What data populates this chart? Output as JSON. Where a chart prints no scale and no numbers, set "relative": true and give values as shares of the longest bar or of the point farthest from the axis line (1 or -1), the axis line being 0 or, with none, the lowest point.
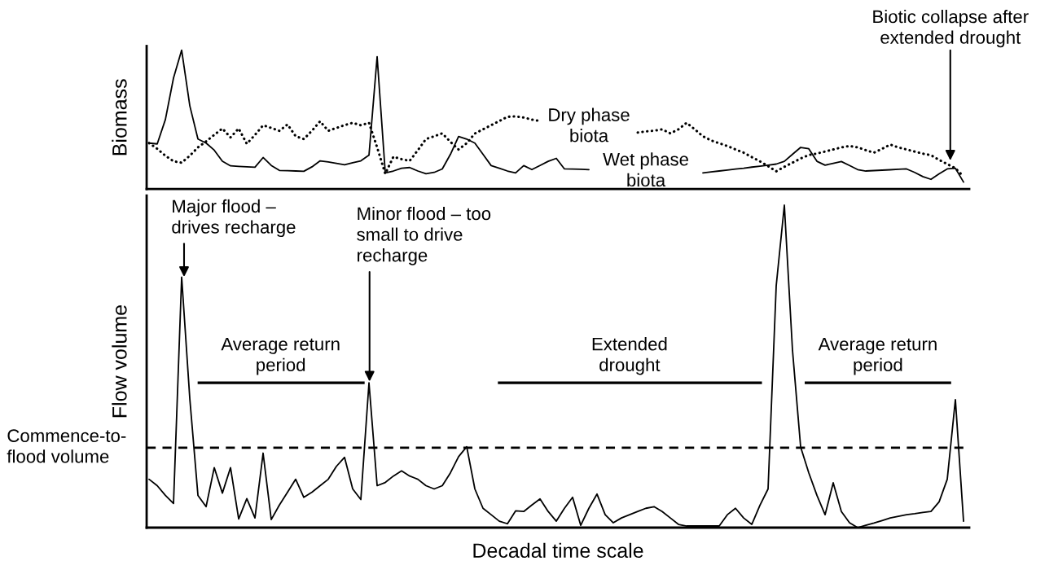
{
  "chart_data": [
    {
      "type": "line",
      "ylabel": "Biomass",
      "relative": true,
      "line_style": "solid",
      "marker": "none",
      "categories": [
        null,
        null,
        null,
        null,
        null,
        null,
        null,
        null,
        null,
        null,
        null,
        null,
        null,
        null,
        null,
        null,
        null,
        null,
        null,
        null,
        null,
        null,
        null,
        null,
        null,
        null,
        null,
        null,
        null,
        null,
        null,
        null,
        null,
        null,
        null,
        null,
        null,
        null,
        null,
        null,
        null,
        null,
        null,
        null,
        null,
        null,
        null,
        null,
        null,
        null,
        null,
        null,
        null,
        null,
        null,
        null,
        null,
        null,
        null,
        null,
        null,
        null,
        null,
        null,
        null,
        null,
        null,
        null,
        null,
        null,
        null,
        null,
        null,
        null,
        null,
        null,
        null,
        null,
        null,
        null,
        null,
        null,
        null,
        null,
        null,
        null,
        null,
        null,
        null,
        null,
        null,
        null,
        null,
        null,
        null,
        null,
        null,
        null,
        null,
        null,
        null
      ],
      "annotations": [
        "Biotic collapse after\nextended drought"
      ],
      "series": [
        {
          "name": "Wet phase\nbiota",
          "color": "#000000",
          "line_style": "solid",
          "values": [
            0.331,
            0.325,
            0.5,
            0.8,
            1,
            0.6,
            0.36,
            0.331,
            0.28,
            0.2,
            0.167,
            0.163,
            0.16,
            0.157,
            0.227,
            0.17,
            0.134,
            0.132,
            0.13,
            0.128,
            0.16,
            0.203,
            0.195,
            0.185,
            0.175,
            0.19,
            0.203,
            0.244,
            0.953,
            0.116,
            0.13,
            0.15,
            0.155,
            0.13,
            0.11,
            0.12,
            0.145,
            0.25,
            0.378,
            0.36,
            0.331,
            0.25,
            0.169,
            0.15,
            0.13,
            0.116,
            0.169,
            0.14,
            0.17,
            0.2,
            0.221,
            0.145,
            0.144,
            0.142,
            0.14,
            null,
            null,
            null,
            null,
            null,
            null,
            null,
            null,
            null,
            null,
            null,
            null,
            null,
            0.116,
            0.123,
            0.13,
            0.137,
            0.144,
            0.15,
            0.158,
            0.165,
            0.172,
            0.18,
            0.2,
            0.25,
            0.3,
            0.29,
            0.2,
            0.172,
            0.185,
            0.198,
            0.17,
            0.14,
            0.13,
            0.133,
            0.136,
            0.139,
            0.142,
            0.145,
            0.12,
            0.09,
            0.07,
            0.11,
            0.145,
            0.15,
            0.05
          ]
        },
        {
          "name": "Dry phase\nbiota",
          "color": "#000000",
          "line_style": "dotted",
          "values": [
            0.331,
            0.29,
            0.24,
            0.2,
            0.19,
            0.24,
            0.3,
            0.343,
            0.39,
            0.436,
            0.372,
            0.436,
            0.326,
            0.39,
            0.459,
            0.44,
            0.419,
            0.465,
            0.38,
            0.36,
            0.42,
            0.488,
            0.419,
            0.44,
            0.46,
            0.477,
            0.459,
            0.477,
            0.3,
            0.11,
            0.233,
            0.215,
            0.203,
            0.28,
            0.36,
            0.38,
            0.401,
            0.34,
            0.285,
            0.33,
            0.4,
            0.43,
            0.46,
            0.49,
            0.52,
            0.523,
            0.515,
            0.5,
            0.49,
            null,
            null,
            null,
            null,
            null,
            null,
            null,
            null,
            null,
            null,
            null,
            0.407,
            0.415,
            0.42,
            0.43,
            0.401,
            0.43,
            0.477,
            0.43,
            0.38,
            0.35,
            0.33,
            0.31,
            0.285,
            0.262,
            0.23,
            0.2,
            0.165,
            0.128,
            0.16,
            0.19,
            0.22,
            0.245,
            0.256,
            0.27,
            0.285,
            0.3,
            0.31,
            0.3,
            0.28,
            0.262,
            0.29,
            0.32,
            0.3,
            0.285,
            0.27,
            0.255,
            0.244,
            0.21,
            0.18,
            0.15,
            0.09
          ]
        }
      ]
    },
    {
      "type": "line",
      "ylabel": "Flow volume",
      "xlabel": "Decadal time scale",
      "relative": true,
      "line_style": "solid",
      "marker": "none",
      "categories": [
        null,
        null,
        null,
        null,
        null,
        null,
        null,
        null,
        null,
        null,
        null,
        null,
        null,
        null,
        null,
        null,
        null,
        null,
        null,
        null,
        null,
        null,
        null,
        null,
        null,
        null,
        null,
        null,
        null,
        null,
        null,
        null,
        null,
        null,
        null,
        null,
        null,
        null,
        null,
        null,
        null,
        null,
        null,
        null,
        null,
        null,
        null,
        null,
        null,
        null,
        null,
        null,
        null,
        null,
        null,
        null,
        null,
        null,
        null,
        null,
        null,
        null,
        null,
        null,
        null,
        null,
        null,
        null,
        null,
        null,
        null,
        null,
        null,
        null,
        null,
        null,
        null,
        null,
        null,
        null,
        null,
        null,
        null,
        null,
        null,
        null,
        null,
        null,
        null,
        null,
        null,
        null,
        null,
        null,
        null,
        null,
        null,
        null,
        null,
        null,
        null
      ],
      "annotations": [
        "Major flood –\ndrives recharge",
        "Minor flood – too\nsmall to drive\nrecharge",
        "Average return\nperiod",
        "Extended\ndrought",
        "Average return\nperiod"
      ],
      "ref_lines": [
        {
          "axis": "y",
          "value": 0.248,
          "label": "Commence-to-\nflood volume",
          "line_style": "dashed",
          "color": "#000000"
        }
      ],
      "series": [
        {
          "color": "#000000",
          "values": [
            0.15,
            0.13,
            0.1,
            0.075,
            0.777,
            0.4,
            0.1,
            0.065,
            0.186,
            0.107,
            0.186,
            0.027,
            0.09,
            0.03,
            0.231,
            0.025,
            0.07,
            0.11,
            0.15,
            0.094,
            0.11,
            0.13,
            0.15,
            0.19,
            0.218,
            0.12,
            0.087,
            0.449,
            0.13,
            0.14,
            0.16,
            0.176,
            0.16,
            0.15,
            0.13,
            0.12,
            0.13,
            0.17,
            0.22,
            0.251,
            0.12,
            0.06,
            0.04,
            0.02,
            0.012,
            0.052,
            0.05,
            0.07,
            0.089,
            0.05,
            0.02,
            0.06,
            0.094,
            0.007,
            0.06,
            0.104,
            0.04,
            0.015,
            0.03,
            0.04,
            0.05,
            0.06,
            0.065,
            0.05,
            0.03,
            0.01,
            0.005,
            0.005,
            0.005,
            0.005,
            0.005,
            0.04,
            0.06,
            0.03,
            0.01,
            0.069,
            0.12,
            0.75,
            1,
            0.55,
            0.25,
            0.17,
            0.1,
            0.04,
            0.139,
            0.05,
            0.015,
            0,
            0.007,
            0.014,
            0.022,
            0.03,
            0.035,
            0.04,
            0.043,
            0.047,
            0.05,
            0.08,
            0.15,
            0.397,
            0.02
          ]
        }
      ]
    }
  ]
}
